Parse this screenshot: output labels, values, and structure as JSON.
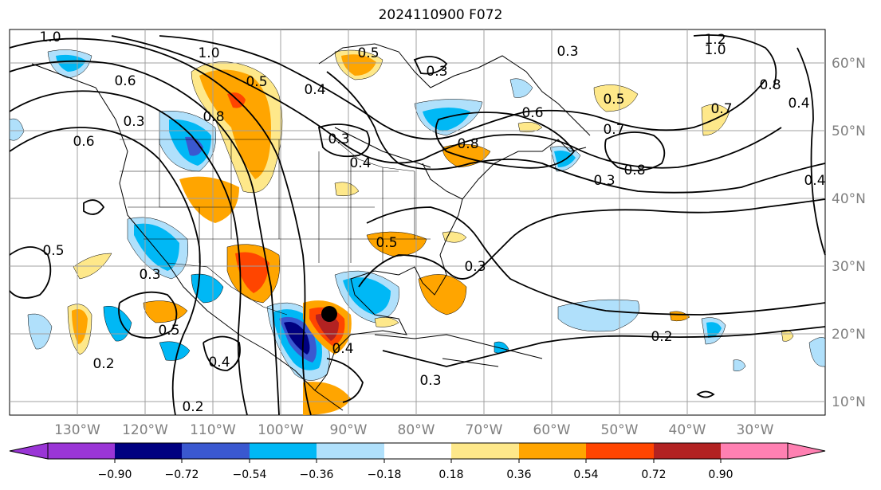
{
  "title": "2024110900 F072",
  "map": {
    "lon_labels": [
      "130°W",
      "120°W",
      "110°W",
      "100°W",
      "90°W",
      "80°W",
      "70°W",
      "60°W",
      "50°W",
      "40°W",
      "30°W"
    ],
    "lat_labels": [
      "60°N",
      "50°N",
      "40°N",
      "30°N",
      "20°N",
      "10°N"
    ],
    "contour_labels": [
      "1.0",
      "1.0",
      "0.6",
      "0.6",
      "0.3",
      "0.5",
      "0.4",
      "0.8",
      "0.3",
      "0.3",
      "0.5",
      "0.3",
      "0.4",
      "0.5",
      "0.5",
      "0.4",
      "0.2",
      "0.2",
      "0.4",
      "0.3",
      "0.6",
      "0.8",
      "0.5",
      "0.7",
      "0.8",
      "0.5",
      "0.3",
      "0.2",
      "0.3",
      "1.2",
      "1.0",
      "0.8",
      "0.4",
      "0.4",
      "0.7",
      "0.3"
    ],
    "storm_marker": "storm-center-marker"
  },
  "colorbar": {
    "ticks": [
      "−0.90",
      "−0.72",
      "−0.54",
      "−0.36",
      "−0.18",
      "0.18",
      "0.36",
      "0.54",
      "0.72",
      "0.90"
    ],
    "colors": [
      "#9a35d6",
      "#000080",
      "#3a58d0",
      "#00b8f5",
      "#b0e0fb",
      "#ffffff",
      "#fee88a",
      "#ffa500",
      "#ff4500",
      "#b22222",
      "#ff80b2"
    ]
  }
}
